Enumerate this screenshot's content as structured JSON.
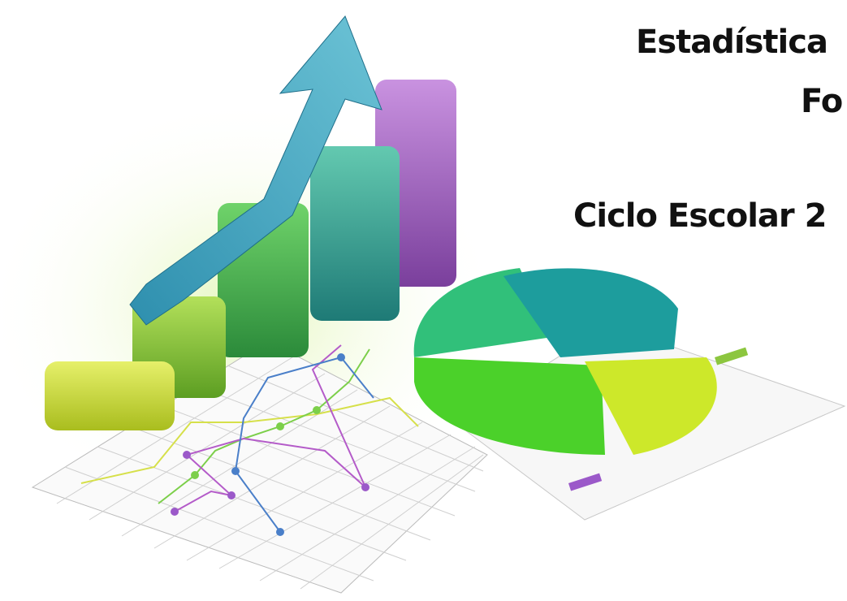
{
  "title_line1": "Estadística",
  "title_line2": "Fo",
  "title_line3": "Ciclo Escolar 2"
}
